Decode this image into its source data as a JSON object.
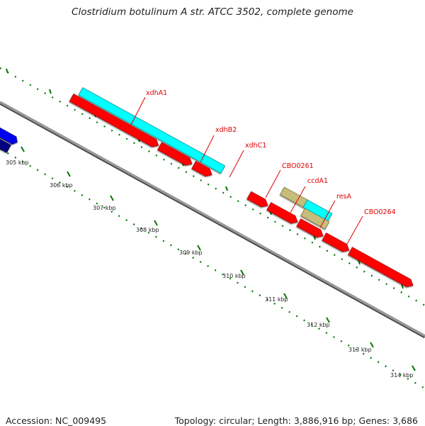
{
  "title": "Clostridium botulinum A str. ATCC 3502, complete genome",
  "footer": {
    "accession": "Accession: NC_009495",
    "summary": "Topology: circular; Length: 3,886,916 bp; Genes: 3,686"
  },
  "colors": {
    "red_feature": "#ff0000",
    "cyan_feature": "#00ffff",
    "khaki_feature": "#c7bd7a",
    "blue_feature": "#0000ee",
    "navy_feature": "#000080",
    "backbone": "#8a8a8a",
    "tick": "#007700",
    "label": "#e00000"
  },
  "kbp_ticks": [
    "305 kbp",
    "306 kbp",
    "307 kbp",
    "308 kbp",
    "309 kbp",
    "310 kbp",
    "311 kbp",
    "312 kbp",
    "313 kbp",
    "314 kbp"
  ],
  "gene_labels": [
    "xdhA1",
    "xdhB2",
    "xdhC1",
    "CBO0261",
    "ccdA1",
    "resA",
    "CBO0264"
  ]
}
